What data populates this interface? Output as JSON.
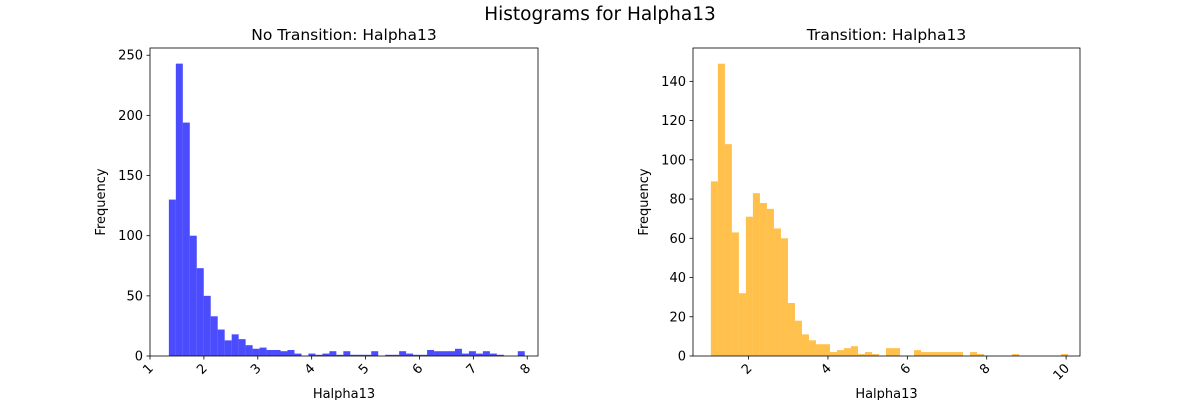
{
  "figure": {
    "suptitle": "Histograms for Halpha13"
  },
  "chart_data": [
    {
      "type": "bar",
      "title": "No Transition: Halpha13",
      "xlabel": "Halpha13",
      "ylabel": "Frequency",
      "color": "#0000ff",
      "alpha": 0.7,
      "xlim": [
        1.0,
        8.2
      ],
      "ylim": [
        0,
        256
      ],
      "xticks": [
        "1",
        "2",
        "3",
        "4",
        "5",
        "6",
        "7",
        "8"
      ],
      "yticks": [
        "0",
        "50",
        "100",
        "150",
        "200",
        "250"
      ],
      "bin_start": 1.35,
      "bin_width": 0.1295,
      "values": [
        130,
        243,
        194,
        100,
        73,
        50,
        33,
        22,
        13,
        18,
        14,
        9,
        6,
        7,
        5,
        5,
        4,
        5,
        2,
        0,
        2,
        1,
        2,
        4,
        1,
        4,
        1,
        1,
        1,
        4,
        0,
        1,
        1,
        4,
        2,
        1,
        1,
        5,
        4,
        4,
        4,
        6,
        2,
        4,
        2,
        4,
        2,
        1,
        0,
        0,
        4
      ]
    },
    {
      "type": "bar",
      "title": "Transition: Halpha13",
      "xlabel": "Halpha13",
      "ylabel": "Frequency",
      "color": "#ffa500",
      "alpha": 0.7,
      "xlim": [
        0.6,
        10.35
      ],
      "ylim": [
        0,
        157
      ],
      "xticks": [
        "2",
        "4",
        "6",
        "8",
        "10"
      ],
      "yticks": [
        "0",
        "20",
        "40",
        "60",
        "80",
        "100",
        "120",
        "140"
      ],
      "bin_start": 1.05,
      "bin_width": 0.1765,
      "values": [
        89,
        149,
        108,
        63,
        32,
        71,
        83,
        78,
        75,
        65,
        60,
        27,
        18,
        11,
        8,
        6,
        6,
        2,
        3,
        4,
        5,
        1,
        2,
        1,
        0,
        4,
        4,
        0,
        0,
        3,
        2,
        2,
        2,
        2,
        2,
        2,
        0,
        2,
        1,
        0,
        0,
        0,
        0,
        1,
        0,
        0,
        0,
        0,
        0,
        0,
        1
      ]
    }
  ]
}
